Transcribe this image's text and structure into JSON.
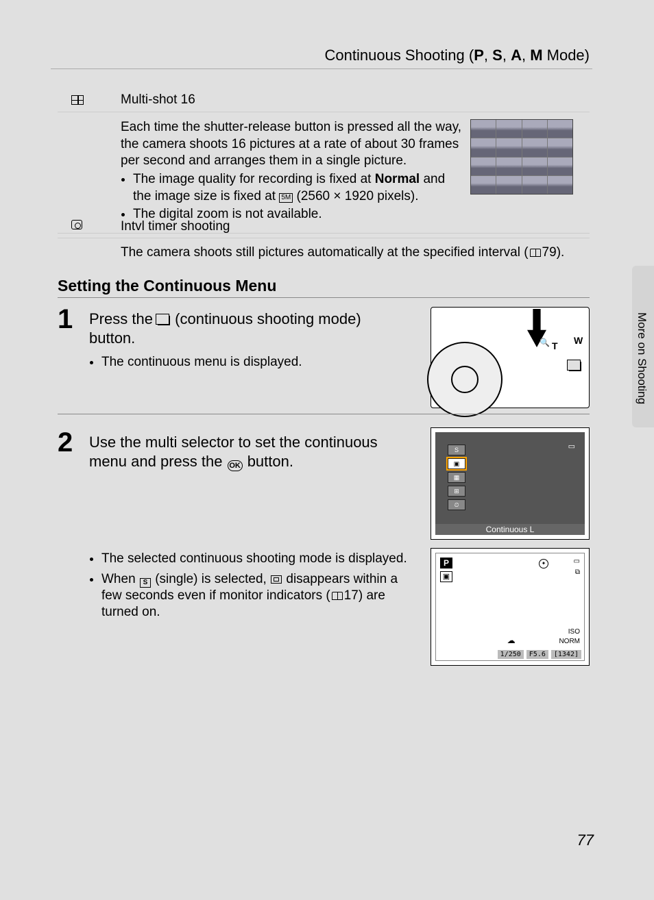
{
  "header": {
    "title_prefix": "Continuous Shooting (",
    "modes": [
      "P",
      "S",
      "A",
      "M"
    ],
    "title_suffix": " Mode)"
  },
  "table": {
    "multishot": {
      "label": "Multi-shot 16",
      "desc": "Each time the shutter-release button is pressed all the way, the camera shoots 16 pictures at a rate of about 30 frames per second and arranges them in a single picture.",
      "bullet1_a": "The image quality for recording is fixed at ",
      "bullet1_bold": "Normal",
      "bullet1_b": " and the image size is fixed at ",
      "bullet1_size_glyph": "5M",
      "bullet1_c": " (2560 × 1920 pixels).",
      "bullet2": "The digital zoom is not available."
    },
    "intvl": {
      "label": "Intvl timer shooting",
      "desc_a": "The camera shoots still pictures automatically at the specified interval (",
      "desc_ref": "79",
      "desc_b": ")."
    }
  },
  "section_heading": "Setting the Continuous Menu",
  "step1": {
    "num": "1",
    "title_a": "Press the ",
    "title_b": " (continuous shooting mode) button.",
    "bullet": "The continuous menu is displayed."
  },
  "step2": {
    "num": "2",
    "title_a": "Use the multi selector to set the continuous menu and press the ",
    "title_b": " button.",
    "ok_label": "OK",
    "bullet1": "The selected continuous shooting mode is displayed.",
    "bullet2_a": "When ",
    "bullet2_s": "S",
    "bullet2_b": " (single) is selected, ",
    "bullet2_c": " disappears within a few seconds even if monitor indicators (",
    "bullet2_ref": "17",
    "bullet2_d": ") are turned on."
  },
  "lcd_a": {
    "selected_label": "Continuous L"
  },
  "lcd_b": {
    "mode": "P",
    "shutter": "1/250",
    "aperture": "F5.6",
    "remaining": "[1342]",
    "norm": "NORM",
    "iso": "ISO"
  },
  "side_tab": "More on Shooting",
  "page_number": "77",
  "colors": {
    "page_bg": "#e0e0e0",
    "lcd_dark": "#555555",
    "lcd_bar": "#666666",
    "highlight": "#ffa500",
    "divider": "#888888"
  }
}
